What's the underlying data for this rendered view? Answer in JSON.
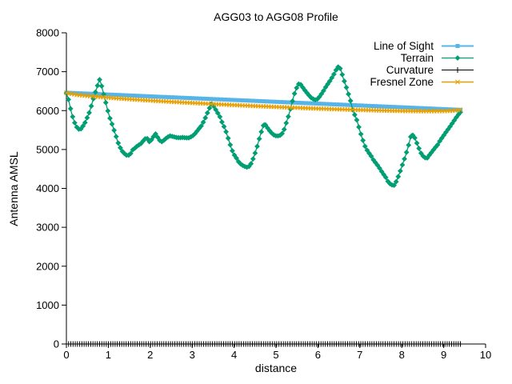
{
  "chart_data": {
    "type": "line",
    "title": "AGG03 to AGG08 Profile",
    "xlabel": "distance",
    "ylabel": "Antenna AMSL",
    "xlim": [
      0,
      10
    ],
    "ylim": [
      0,
      8000
    ],
    "x_ticks": [
      0,
      1,
      2,
      3,
      4,
      5,
      6,
      7,
      8,
      9,
      10
    ],
    "y_ticks": [
      0,
      1000,
      2000,
      3000,
      4000,
      5000,
      6000,
      7000,
      8000
    ],
    "grid": false,
    "legend_position": "top-right-inside",
    "background_color": "#ffffff",
    "axis_color": "#000000",
    "series": [
      {
        "name": "Line of Sight",
        "color": "#56b4e9",
        "marker": "square",
        "line_width": 3,
        "n_markers": 112,
        "points": [
          [
            0,
            6460
          ],
          [
            9.4,
            6020
          ]
        ]
      },
      {
        "name": "Terrain",
        "color": "#009e73",
        "marker": "diamond",
        "line_width": 1.3,
        "n_markers": 190,
        "points": [
          [
            0.0,
            6450
          ],
          [
            0.04,
            6330
          ],
          [
            0.08,
            6140
          ],
          [
            0.12,
            5950
          ],
          [
            0.16,
            5800
          ],
          [
            0.2,
            5680
          ],
          [
            0.25,
            5570
          ],
          [
            0.3,
            5520
          ],
          [
            0.35,
            5530
          ],
          [
            0.4,
            5610
          ],
          [
            0.45,
            5700
          ],
          [
            0.5,
            5830
          ],
          [
            0.55,
            5960
          ],
          [
            0.6,
            6140
          ],
          [
            0.65,
            6330
          ],
          [
            0.7,
            6500
          ],
          [
            0.75,
            6670
          ],
          [
            0.79,
            6800
          ],
          [
            0.83,
            6680
          ],
          [
            0.87,
            6500
          ],
          [
            0.91,
            6340
          ],
          [
            0.97,
            6070
          ],
          [
            1.03,
            5830
          ],
          [
            1.08,
            5680
          ],
          [
            1.13,
            5520
          ],
          [
            1.18,
            5360
          ],
          [
            1.22,
            5210
          ],
          [
            1.27,
            5080
          ],
          [
            1.32,
            4970
          ],
          [
            1.38,
            4900
          ],
          [
            1.45,
            4840
          ],
          [
            1.52,
            4870
          ],
          [
            1.58,
            4990
          ],
          [
            1.64,
            5040
          ],
          [
            1.7,
            5100
          ],
          [
            1.77,
            5140
          ],
          [
            1.84,
            5230
          ],
          [
            1.91,
            5310
          ],
          [
            1.98,
            5200
          ],
          [
            2.05,
            5270
          ],
          [
            2.1,
            5380
          ],
          [
            2.14,
            5410
          ],
          [
            2.19,
            5280
          ],
          [
            2.26,
            5190
          ],
          [
            2.33,
            5240
          ],
          [
            2.4,
            5310
          ],
          [
            2.47,
            5350
          ],
          [
            2.55,
            5330
          ],
          [
            2.62,
            5310
          ],
          [
            2.7,
            5300
          ],
          [
            2.77,
            5310
          ],
          [
            2.85,
            5300
          ],
          [
            2.92,
            5300
          ],
          [
            3.0,
            5340
          ],
          [
            3.08,
            5420
          ],
          [
            3.15,
            5520
          ],
          [
            3.22,
            5610
          ],
          [
            3.29,
            5750
          ],
          [
            3.36,
            5930
          ],
          [
            3.42,
            6080
          ],
          [
            3.47,
            6190
          ],
          [
            3.52,
            6100
          ],
          [
            3.58,
            5990
          ],
          [
            3.65,
            5870
          ],
          [
            3.72,
            5680
          ],
          [
            3.79,
            5520
          ],
          [
            3.85,
            5320
          ],
          [
            3.92,
            5080
          ],
          [
            3.98,
            4900
          ],
          [
            4.05,
            4790
          ],
          [
            4.12,
            4660
          ],
          [
            4.19,
            4600
          ],
          [
            4.26,
            4560
          ],
          [
            4.32,
            4540
          ],
          [
            4.38,
            4580
          ],
          [
            4.44,
            4720
          ],
          [
            4.5,
            4900
          ],
          [
            4.56,
            5110
          ],
          [
            4.62,
            5350
          ],
          [
            4.67,
            5520
          ],
          [
            4.72,
            5680
          ],
          [
            4.77,
            5600
          ],
          [
            4.82,
            5520
          ],
          [
            4.88,
            5440
          ],
          [
            4.94,
            5380
          ],
          [
            5.0,
            5350
          ],
          [
            5.07,
            5350
          ],
          [
            5.13,
            5380
          ],
          [
            5.19,
            5500
          ],
          [
            5.25,
            5700
          ],
          [
            5.31,
            5900
          ],
          [
            5.37,
            6150
          ],
          [
            5.43,
            6400
          ],
          [
            5.49,
            6580
          ],
          [
            5.55,
            6700
          ],
          [
            5.6,
            6660
          ],
          [
            5.66,
            6560
          ],
          [
            5.72,
            6480
          ],
          [
            5.78,
            6400
          ],
          [
            5.84,
            6330
          ],
          [
            5.9,
            6290
          ],
          [
            5.96,
            6270
          ],
          [
            6.02,
            6330
          ],
          [
            6.08,
            6420
          ],
          [
            6.14,
            6520
          ],
          [
            6.2,
            6630
          ],
          [
            6.26,
            6720
          ],
          [
            6.32,
            6820
          ],
          [
            6.38,
            6930
          ],
          [
            6.44,
            7060
          ],
          [
            6.5,
            7150
          ],
          [
            6.55,
            7040
          ],
          [
            6.6,
            6850
          ],
          [
            6.66,
            6660
          ],
          [
            6.72,
            6450
          ],
          [
            6.77,
            6290
          ],
          [
            6.83,
            6010
          ],
          [
            6.89,
            5860
          ],
          [
            6.94,
            5720
          ],
          [
            7.0,
            5480
          ],
          [
            7.06,
            5280
          ],
          [
            7.12,
            5090
          ],
          [
            7.19,
            4950
          ],
          [
            7.26,
            4850
          ],
          [
            7.33,
            4720
          ],
          [
            7.4,
            4630
          ],
          [
            7.47,
            4520
          ],
          [
            7.54,
            4400
          ],
          [
            7.61,
            4300
          ],
          [
            7.68,
            4160
          ],
          [
            7.75,
            4090
          ],
          [
            7.82,
            4080
          ],
          [
            7.88,
            4200
          ],
          [
            7.95,
            4400
          ],
          [
            8.02,
            4620
          ],
          [
            8.09,
            4840
          ],
          [
            8.16,
            5100
          ],
          [
            8.23,
            5400
          ],
          [
            8.3,
            5330
          ],
          [
            8.37,
            5140
          ],
          [
            8.45,
            4920
          ],
          [
            8.53,
            4800
          ],
          [
            8.6,
            4770
          ],
          [
            8.66,
            4860
          ],
          [
            8.72,
            4940
          ],
          [
            8.79,
            5040
          ],
          [
            8.85,
            5110
          ],
          [
            8.92,
            5240
          ],
          [
            8.98,
            5330
          ],
          [
            9.05,
            5440
          ],
          [
            9.12,
            5540
          ],
          [
            9.19,
            5650
          ],
          [
            9.26,
            5760
          ],
          [
            9.33,
            5870
          ],
          [
            9.4,
            5960
          ]
        ]
      },
      {
        "name": "Curvature",
        "color": "#000000",
        "marker": "plus",
        "line_width": 1,
        "n_markers": 178,
        "points": [
          [
            0,
            0
          ],
          [
            9.4,
            0
          ]
        ]
      },
      {
        "name": "Fresnel Zone",
        "color": "#e69f00",
        "marker": "x",
        "line_width": 1.5,
        "n_markers": 150,
        "points": [
          [
            0,
            6455
          ],
          [
            0.25,
            6405
          ],
          [
            0.5,
            6378
          ],
          [
            1,
            6333
          ],
          [
            1.5,
            6294
          ],
          [
            2,
            6259
          ],
          [
            2.5,
            6227
          ],
          [
            3,
            6198
          ],
          [
            3.5,
            6169
          ],
          [
            4,
            6143
          ],
          [
            4.5,
            6118
          ],
          [
            5,
            6095
          ],
          [
            5.5,
            6073
          ],
          [
            6,
            6052
          ],
          [
            6.5,
            6034
          ],
          [
            7,
            6017
          ],
          [
            7.5,
            6004
          ],
          [
            8,
            5992
          ],
          [
            8.5,
            5986
          ],
          [
            9,
            5988
          ],
          [
            9.2,
            5996
          ],
          [
            9.4,
            6020
          ]
        ]
      }
    ]
  }
}
